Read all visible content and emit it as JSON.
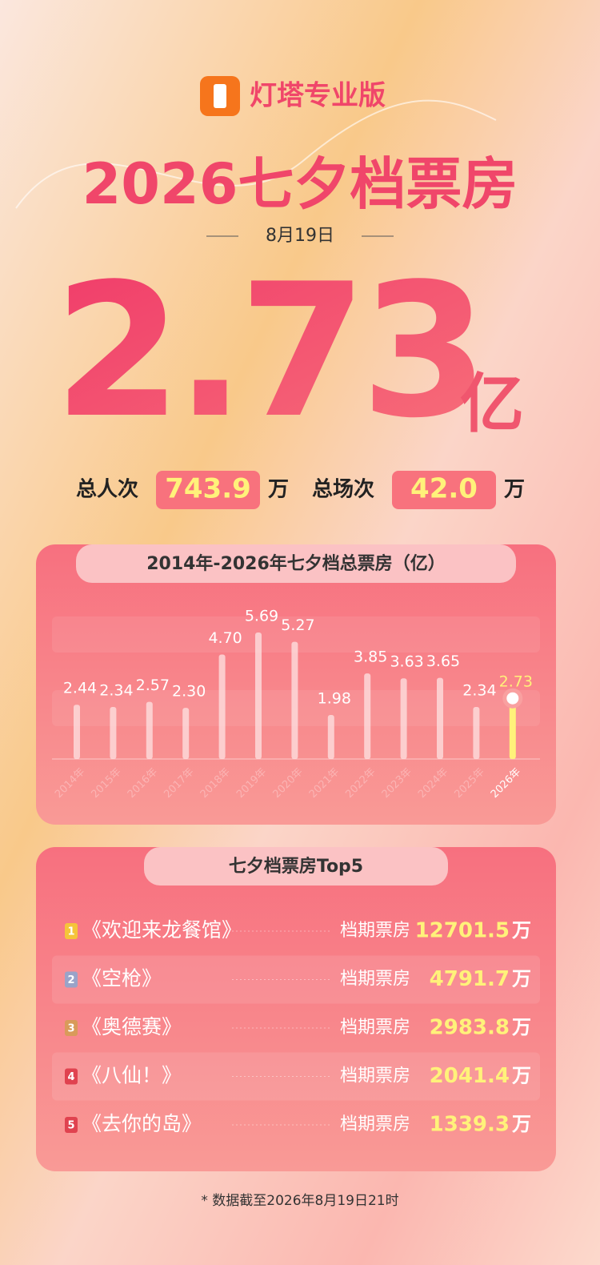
{
  "header": {
    "brand": "灯塔专业版",
    "title": "2026七夕档票房",
    "date": "8月19日"
  },
  "total": {
    "value": "2.73",
    "unit": "亿"
  },
  "stats": [
    {
      "label": "总人次",
      "value": "743.9",
      "unit": "万"
    },
    {
      "label": "总场次",
      "value": "42.0",
      "unit": "万"
    }
  ],
  "chart_data": {
    "type": "bar",
    "title": "2014年-2026年七夕档总票房（亿）",
    "categories": [
      "2014年",
      "2015年",
      "2016年",
      "2017年",
      "2018年",
      "2019年",
      "2020年",
      "2021年",
      "2022年",
      "2023年",
      "2024年",
      "2025年",
      "2026年"
    ],
    "values": [
      2.44,
      2.34,
      2.57,
      2.3,
      4.7,
      5.69,
      5.27,
      1.98,
      3.85,
      3.63,
      3.65,
      2.34,
      2.73
    ],
    "value_labels": [
      "2.44",
      "2.34",
      "2.57",
      "2.30",
      "4.70",
      "5.69",
      "5.27",
      "1.98",
      "3.85",
      "3.63",
      "3.65",
      "2.34",
      "2.73"
    ],
    "color": "#fde3e3",
    "highlight_color": "#fff27a"
  },
  "top5": {
    "title": "七夕档票房Top5",
    "rows": [
      {
        "rank": 1,
        "title": "《欢迎来龙餐馆》",
        "label": "档期票房",
        "value": "12701.5",
        "unit": "万"
      },
      {
        "rank": 2,
        "title": "《空枪》",
        "label": "档期票房",
        "value": "4791.7",
        "unit": "万"
      },
      {
        "rank": 3,
        "title": "《奥德赛》",
        "label": "档期票房",
        "value": "2983.8",
        "unit": "万"
      },
      {
        "rank": 4,
        "title": "《八仙！》",
        "label": "档期票房",
        "value": "2041.4",
        "unit": "万"
      },
      {
        "rank": 5,
        "title": "《去你的岛》",
        "label": "档期票房",
        "value": "1339.3",
        "unit": "万"
      }
    ]
  },
  "footnote": "* 数据截至2026年8月19日21时"
}
